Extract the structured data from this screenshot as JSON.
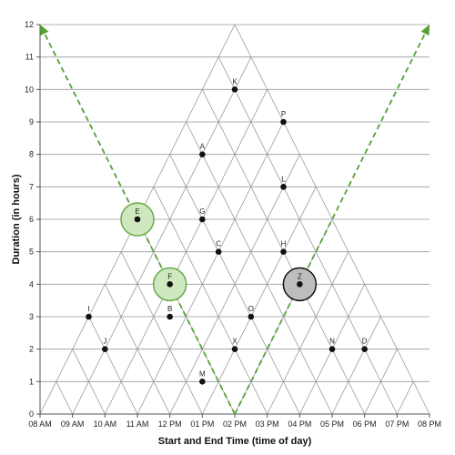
{
  "chart_data": {
    "type": "scatter",
    "xlabel": "Start and End Time (time of day)",
    "ylabel": "Duration (in hours)",
    "xlim": [
      8,
      20
    ],
    "ylim": [
      0,
      12
    ],
    "x_ticks": [
      "08 AM",
      "09 AM",
      "10 AM",
      "11 AM",
      "12 PM",
      "01 PM",
      "02 PM",
      "03 PM",
      "04 PM",
      "05 PM",
      "06 PM",
      "07 PM",
      "08 PM"
    ],
    "y_ticks": [
      "0",
      "1",
      "2",
      "3",
      "4",
      "5",
      "6",
      "7",
      "8",
      "9",
      "10",
      "11",
      "12"
    ],
    "grid": "horizontal lines plus triangular start/end time lattice",
    "colors": {
      "grid": "#999999",
      "lattice": "#999999",
      "point": "#111111",
      "guide": "#55a033",
      "highlight_fill": "#cfe8bf",
      "highlight_stroke": "#66aa44",
      "selected_fill": "#bdbdbd",
      "selected_stroke": "#111111"
    },
    "points": [
      {
        "label": "K",
        "x": 14.0,
        "y": 10
      },
      {
        "label": "P",
        "x": 15.5,
        "y": 9
      },
      {
        "label": "A",
        "x": 13.0,
        "y": 8
      },
      {
        "label": "L",
        "x": 15.5,
        "y": 7
      },
      {
        "label": "E",
        "x": 11.0,
        "y": 6
      },
      {
        "label": "G",
        "x": 13.0,
        "y": 6
      },
      {
        "label": "C",
        "x": 13.5,
        "y": 5
      },
      {
        "label": "H",
        "x": 15.5,
        "y": 5
      },
      {
        "label": "F",
        "x": 12.0,
        "y": 4
      },
      {
        "label": "Z",
        "x": 16.0,
        "y": 4
      },
      {
        "label": "I",
        "x": 9.5,
        "y": 3
      },
      {
        "label": "B",
        "x": 12.0,
        "y": 3
      },
      {
        "label": "O",
        "x": 14.5,
        "y": 3
      },
      {
        "label": "J",
        "x": 10.0,
        "y": 2
      },
      {
        "label": "X",
        "x": 14.0,
        "y": 2
      },
      {
        "label": "N",
        "x": 17.0,
        "y": 2
      },
      {
        "label": "D",
        "x": 18.0,
        "y": 2
      },
      {
        "label": "M",
        "x": 13.0,
        "y": 1
      }
    ],
    "highlighted": [
      "E",
      "F"
    ],
    "selected": [
      "Z"
    ],
    "guide_lines": [
      {
        "from": [
          14,
          0
        ],
        "to": [
          8,
          12
        ]
      },
      {
        "from": [
          14,
          0
        ],
        "to": [
          20,
          12
        ]
      }
    ]
  }
}
